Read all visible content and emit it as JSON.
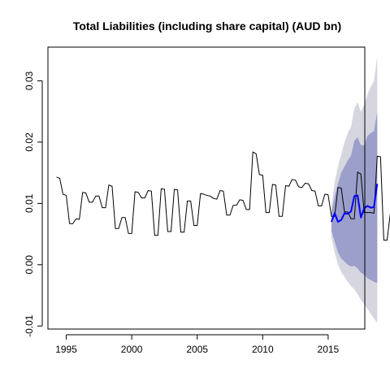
{
  "chart_data": {
    "type": "line",
    "title": "Total Liabilities (including share capital) (AUD bn)",
    "xlabel": "",
    "ylabel": "",
    "xlim": [
      1993.6,
      2017.8
    ],
    "ylim": [
      -0.0105,
      0.0355
    ],
    "x_ticks": [
      1995,
      2000,
      2005,
      2010,
      2015
    ],
    "x_tick_labels": [
      "1995",
      "2000",
      "2005",
      "2010",
      "2015"
    ],
    "y_ticks": [
      -0.01,
      0.0,
      0.01,
      0.02,
      0.03
    ],
    "y_tick_labels": [
      "-0.01",
      "0.00",
      "0.01",
      "0.02",
      "0.03"
    ],
    "history": {
      "name": "Observed",
      "color": "#000000",
      "start": 1994.25,
      "step": 0.25,
      "values": [
        0.0143,
        0.0141,
        0.0115,
        0.0113,
        0.0067,
        0.0067,
        0.0075,
        0.0074,
        0.0118,
        0.0117,
        0.0102,
        0.0102,
        0.0112,
        0.0112,
        0.0093,
        0.0093,
        0.013,
        0.0128,
        0.0059,
        0.0059,
        0.0077,
        0.0077,
        0.0051,
        0.0051,
        0.0119,
        0.0118,
        0.0109,
        0.0109,
        0.0121,
        0.012,
        0.0048,
        0.0048,
        0.0124,
        0.0123,
        0.0054,
        0.0054,
        0.0123,
        0.0122,
        0.0053,
        0.0053,
        0.0104,
        0.0104,
        0.0064,
        0.0064,
        0.0116,
        0.0115,
        0.0113,
        0.0112,
        0.0108,
        0.0107,
        0.0121,
        0.012,
        0.0081,
        0.0081,
        0.0097,
        0.0097,
        0.0106,
        0.0105,
        0.009,
        0.009,
        0.0184,
        0.0181,
        0.0147,
        0.0146,
        0.0085,
        0.0085,
        0.0131,
        0.013,
        0.0079,
        0.0079,
        0.0129,
        0.0128,
        0.0139,
        0.0138,
        0.0127,
        0.0126,
        0.0133,
        0.0132,
        0.0121,
        0.012,
        0.0096,
        0.0096,
        0.0115,
        0.0114,
        0.0079,
        0.0079,
        0.0126,
        0.0125,
        0.0086,
        0.0086,
        0.0075,
        0.0075,
        0.0151,
        0.0148,
        0.0085,
        0.0085,
        0.0085,
        0.0084,
        0.0177,
        0.0176,
        0.004,
        0.004,
        0.0084,
        0.0083,
        0.008,
        0.008,
        0.0088,
        0.0088,
        0.0042,
        0.0042,
        0.0022,
        0.0022,
        0.0085,
        0.0084,
        0.0071,
        0.0071,
        0.0077,
        0.0076,
        0.0046,
        0.0046,
        0.007,
        0.0069,
        0.005,
        0.005,
        0.0052,
        0.0052,
        0.0074,
        0.0074,
        0.0035,
        0.0035,
        0.0031,
        0.0031,
        0.0057,
        0.0057,
        0.0041,
        0.0041,
        0.0026,
        0.0026,
        0.0062,
        0.0062,
        0.0032,
        0.0032,
        0.0058,
        0.0057,
        0.0034,
        0.0034,
        0.0063,
        0.0063,
        0.0068,
        0.0068,
        0.0092,
        0.009,
        0.006,
        0.006,
        0.0064,
        0.0064,
        0.007
      ]
    },
    "forecast": {
      "name": "Forecast",
      "color": "#0000ff",
      "start": 2015.25,
      "step": 0.25,
      "values": [
        0.007,
        0.0084,
        0.007,
        0.0073,
        0.0084,
        0.0083,
        0.0087,
        0.0112,
        0.0113,
        0.0077,
        0.0092,
        0.0096,
        0.0093,
        0.0094,
        0.0132
      ],
      "interval_80": {
        "color": "#9b9fc9",
        "lower": [
          0.0055,
          0.0038,
          0.002,
          0.001,
          0.0005,
          0.0,
          -0.0003,
          -0.0002,
          -0.0006,
          -0.0013,
          -0.0016,
          -0.0022,
          -0.0025,
          -0.0028,
          -0.003
        ],
        "upper": [
          0.0085,
          0.0112,
          0.0132,
          0.015,
          0.016,
          0.017,
          0.0178,
          0.0202,
          0.0208,
          0.0195,
          0.0195,
          0.021,
          0.0215,
          0.0218,
          0.025
        ]
      },
      "interval_95": {
        "color": "#d6d6e0",
        "lower": [
          0.0045,
          0.002,
          0.0,
          -0.0012,
          -0.002,
          -0.0028,
          -0.0035,
          -0.004,
          -0.0048,
          -0.0058,
          -0.0064,
          -0.0072,
          -0.008,
          -0.0088,
          -0.0095
        ],
        "upper": [
          0.0095,
          0.0135,
          0.016,
          0.018,
          0.02,
          0.0215,
          0.0225,
          0.0255,
          0.0265,
          0.025,
          0.026,
          0.0278,
          0.029,
          0.03,
          0.034
        ]
      }
    }
  }
}
